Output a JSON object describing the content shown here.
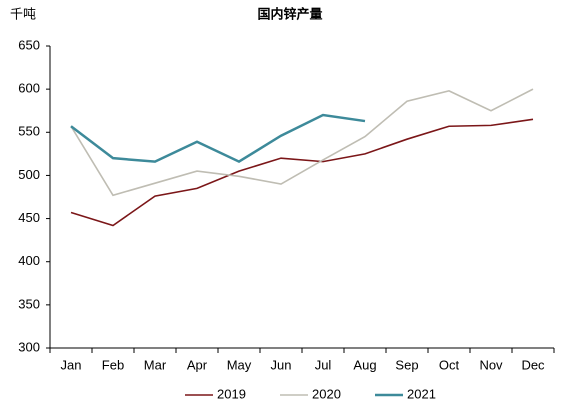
{
  "chart_data": {
    "type": "line",
    "title": "国内锌产量",
    "y_label": "千吨",
    "categories": [
      "Jan",
      "Feb",
      "Mar",
      "Apr",
      "May",
      "Jun",
      "Jul",
      "Aug",
      "Sep",
      "Oct",
      "Nov",
      "Dec"
    ],
    "series": [
      {
        "name": "2019",
        "color": "#7b1618",
        "values": [
          457,
          442,
          476,
          485,
          505,
          520,
          516,
          525,
          542,
          557,
          558,
          565
        ]
      },
      {
        "name": "2020",
        "color": "#bfbdb3",
        "values": [
          557,
          477,
          491,
          505,
          499,
          490,
          518,
          545,
          586,
          598,
          575,
          600
        ]
      },
      {
        "name": "2021",
        "color": "#3d8a9a",
        "values": [
          557,
          520,
          516,
          539,
          516,
          546,
          570,
          563,
          null,
          null,
          null,
          null
        ]
      }
    ],
    "ylim": [
      300,
      650
    ],
    "yticks": [
      300,
      350,
      400,
      450,
      500,
      550,
      600,
      650
    ],
    "grid": false,
    "legend": "bottom"
  }
}
